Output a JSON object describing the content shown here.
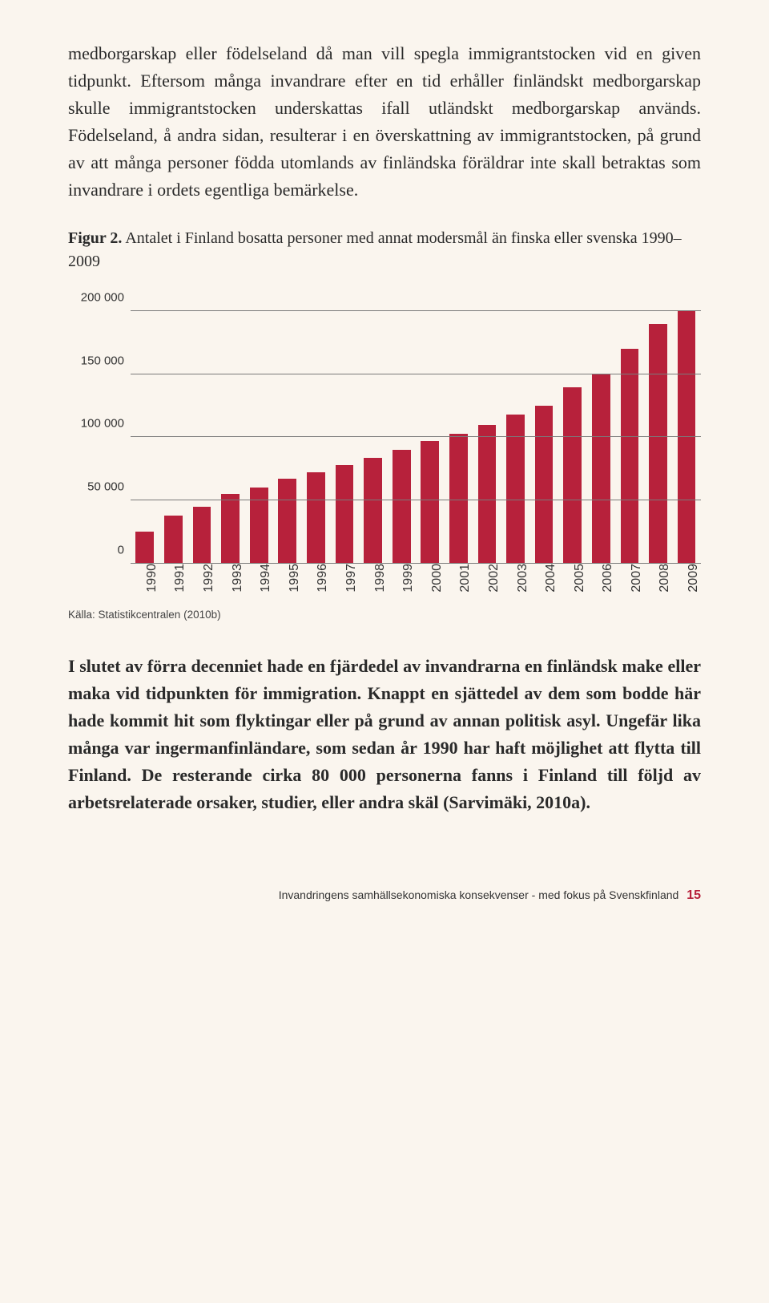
{
  "paragraph1": "medborgarskap eller födelseland då man vill spegla immigrant­stocken vid en given tidpunkt. Eftersom många invandrare efter en tid erhåller finländskt medborgarskap skulle immigrantstocken underskattas ifall utländskt medborgarskap används. Födelseland, å andra sidan, resulterar i en överskattning av immigrantstocken, på grund av att många personer födda utomlands av finländska för­äldrar inte skall betraktas som invandrare i ordets egentliga bemär­kelse.",
  "figure": {
    "label": "Figur 2.",
    "caption": "Antalet i Finland bosatta personer med annat modersmål än finska eller svenska 1990–2009"
  },
  "chart": {
    "type": "bar",
    "ylim": [
      0,
      210000
    ],
    "yticks": [
      0,
      50000,
      100000,
      150000,
      200000
    ],
    "ytick_labels": [
      "0",
      "50 000",
      "100 000",
      "150 000",
      "200 000"
    ],
    "categories": [
      "1990",
      "1991",
      "1992",
      "1993",
      "1994",
      "1995",
      "1996",
      "1997",
      "1998",
      "1999",
      "2000",
      "2001",
      "2002",
      "2003",
      "2004",
      "2005",
      "2006",
      "2007",
      "2008",
      "2009"
    ],
    "values": [
      25000,
      38000,
      45000,
      55000,
      60000,
      67000,
      72000,
      78000,
      84000,
      90000,
      97000,
      103000,
      110000,
      118000,
      125000,
      140000,
      150000,
      170000,
      190000,
      200000
    ],
    "bar_color": "#b7213b",
    "grid_color": "#7a7a7a",
    "background_color": "#faf5ee",
    "tick_fontsize": 15,
    "bar_width_ratio": 0.64
  },
  "source": "Källa: Statistikcentralen (2010b)",
  "paragraph2": "I slutet av förra decenniet hade en fjärdedel av invandrarna en finländsk make eller maka vid tidpunkten för immigration. Knappt en sjättedel av dem som bodde här hade kommit hit som flyktingar eller på grund av annan politisk asyl. Ungefär lika många var ingermanfinländare, som sedan år 1990 har haft möjlighet att flytta till Finland. De resterande cirka 80 000 per­sonerna fanns i Finland till följd av arbetsrelaterade orsaker, studier, eller andra skäl (Sarvimäki, 2010a).",
  "footer": {
    "text": "Invandringens samhällsekonomiska konsekvenser - med fokus på Svenskfinland",
    "page": "15"
  }
}
